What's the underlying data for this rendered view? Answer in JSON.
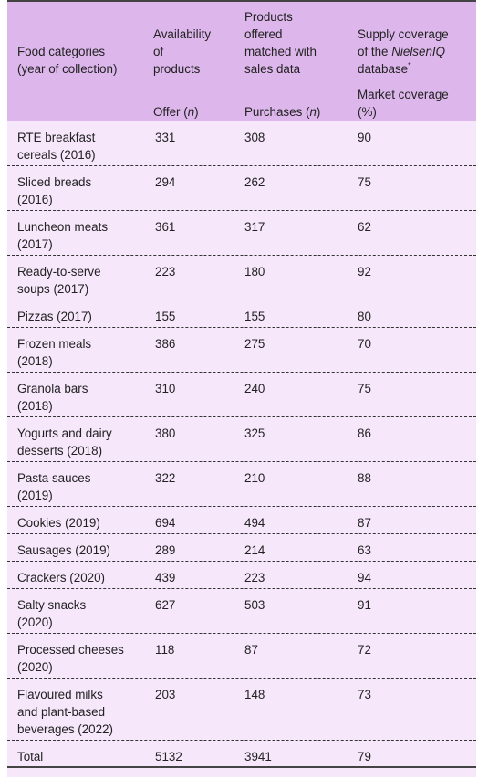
{
  "header": {
    "col1_line1": "Food categories",
    "col1_line2": "(year of collection)",
    "col2_line1": "Availability",
    "col2_line2": "of",
    "col2_line3": "products",
    "col2_sub_text": "Offer (",
    "col2_sub_n": "n",
    "col2_sub_close": ")",
    "col3_line1": "Products",
    "col3_line2": "offered",
    "col3_line3": "matched with",
    "col3_line4": "sales data",
    "col3_sub_text": "Purchases (",
    "col3_sub_n": "n",
    "col3_sub_close": ")",
    "col4_line1": "Supply coverage",
    "col4_line2a": "of the ",
    "col4_line2b": "NielsenIQ",
    "col4_line3": "database",
    "col4_sup": "*",
    "col4_sub1": "Market coverage",
    "col4_sub2": "(%)"
  },
  "rows": [
    {
      "l1": "RTE breakfast",
      "l2": "cereals (2016)",
      "offer": "331",
      "purchases": "308",
      "coverage": "90"
    },
    {
      "l1": "Sliced breads",
      "l2": "(2016)",
      "offer": "294",
      "purchases": "262",
      "coverage": "75"
    },
    {
      "l1": "Luncheon meats",
      "l2": "(2017)",
      "offer": "361",
      "purchases": "317",
      "coverage": "62"
    },
    {
      "l1": "Ready-to-serve",
      "l2": "soups (2017)",
      "offer": "223",
      "purchases": "180",
      "coverage": "92"
    },
    {
      "l1": "Pizzas (2017)",
      "offer": "155",
      "purchases": "155",
      "coverage": "80"
    },
    {
      "l1": "Frozen meals",
      "l2": "(2018)",
      "offer": "386",
      "purchases": "275",
      "coverage": "70"
    },
    {
      "l1": "Granola bars",
      "l2": "(2018)",
      "offer": "310",
      "purchases": "240",
      "coverage": "75"
    },
    {
      "l1": "Yogurts and dairy",
      "l2": "desserts (2018)",
      "offer": "380",
      "purchases": "325",
      "coverage": "86"
    },
    {
      "l1": "Pasta sauces",
      "l2": "(2019)",
      "offer": "322",
      "purchases": "210",
      "coverage": "88"
    },
    {
      "l1": "Cookies (2019)",
      "offer": "694",
      "purchases": "494",
      "coverage": "87"
    },
    {
      "l1": "Sausages (2019)",
      "offer": "289",
      "purchases": "214",
      "coverage": "63"
    },
    {
      "l1": "Crackers (2020)",
      "offer": "439",
      "purchases": "223",
      "coverage": "94"
    },
    {
      "l1": "Salty snacks",
      "l2": "(2020)",
      "offer": "627",
      "purchases": "503",
      "coverage": "91"
    },
    {
      "l1": "Processed cheeses",
      "l2": "(2020)",
      "offer": "118",
      "purchases": "87",
      "coverage": "72"
    },
    {
      "l1": "Flavoured milks",
      "l2": "and plant-based",
      "l3": "beverages (2022)",
      "offer": "203",
      "purchases": "148",
      "coverage": "73"
    },
    {
      "l1": "Total",
      "offer": "5132",
      "purchases": "3941",
      "coverage": "79"
    }
  ]
}
